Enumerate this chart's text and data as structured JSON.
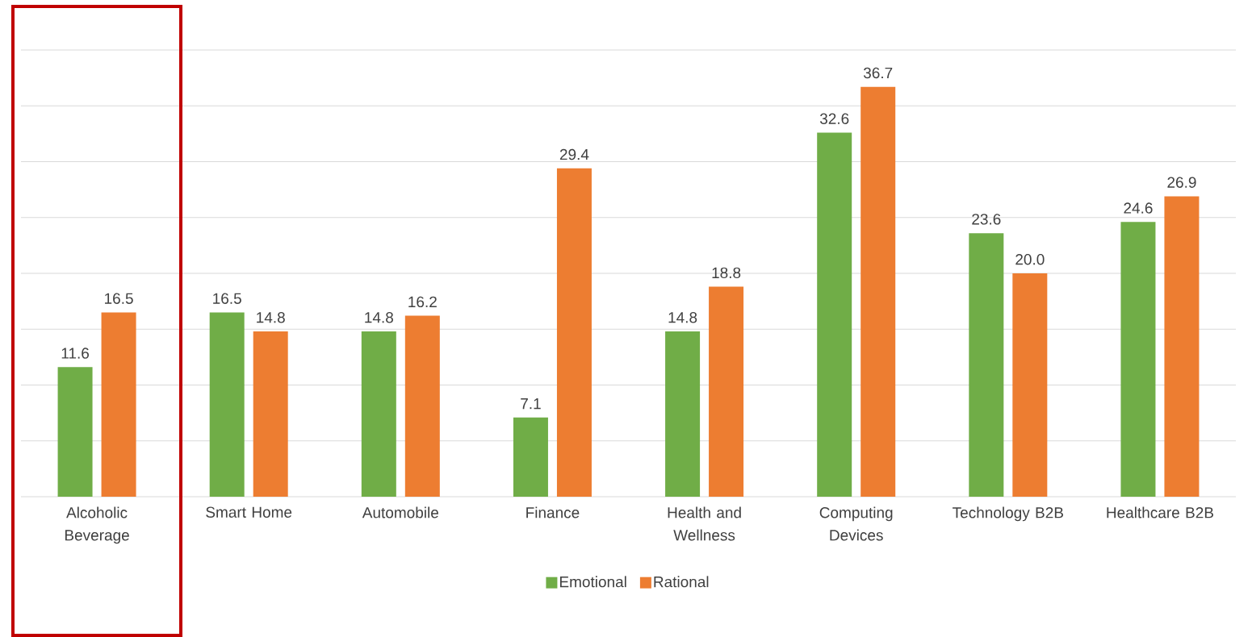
{
  "chart_data": {
    "type": "bar",
    "categories": [
      "Alcoholic Beverage",
      "Smart Home",
      "Automobile",
      "Finance",
      "Health and Wellness",
      "Computing Devices",
      "Technology B2B",
      "Healthcare B2B"
    ],
    "series": [
      {
        "name": "Emotional",
        "color": "#70ad47",
        "values": [
          11.6,
          16.5,
          14.8,
          7.1,
          14.8,
          32.6,
          23.6,
          24.6
        ],
        "value_labels": [
          "11.6",
          "16.5",
          "14.8",
          "7.1",
          "14.8",
          "32.6",
          "23.6",
          "24.6"
        ]
      },
      {
        "name": "Rational",
        "color": "#ed7d31",
        "values": [
          16.5,
          14.8,
          16.2,
          29.4,
          18.8,
          36.7,
          20,
          26.9
        ],
        "value_labels": [
          "16.5",
          "14.8",
          "16.2",
          "29.4",
          "18.8",
          "36.7",
          "20.0",
          "26.9"
        ]
      }
    ],
    "ylim": [
      0,
      40
    ],
    "yticks": [
      {
        "value": 0,
        "label": null
      },
      {
        "value": 5,
        "label": null
      },
      {
        "value": 10,
        "label": null
      },
      {
        "value": 15,
        "label": null
      },
      {
        "value": 20,
        "label": null
      },
      {
        "value": 25,
        "label": null
      },
      {
        "value": 30,
        "label": null
      },
      {
        "value": 35,
        "label": null
      },
      {
        "value": 40,
        "label": null
      }
    ],
    "tick_labels": "x",
    "grid": "y",
    "legend": "bottom"
  }
}
